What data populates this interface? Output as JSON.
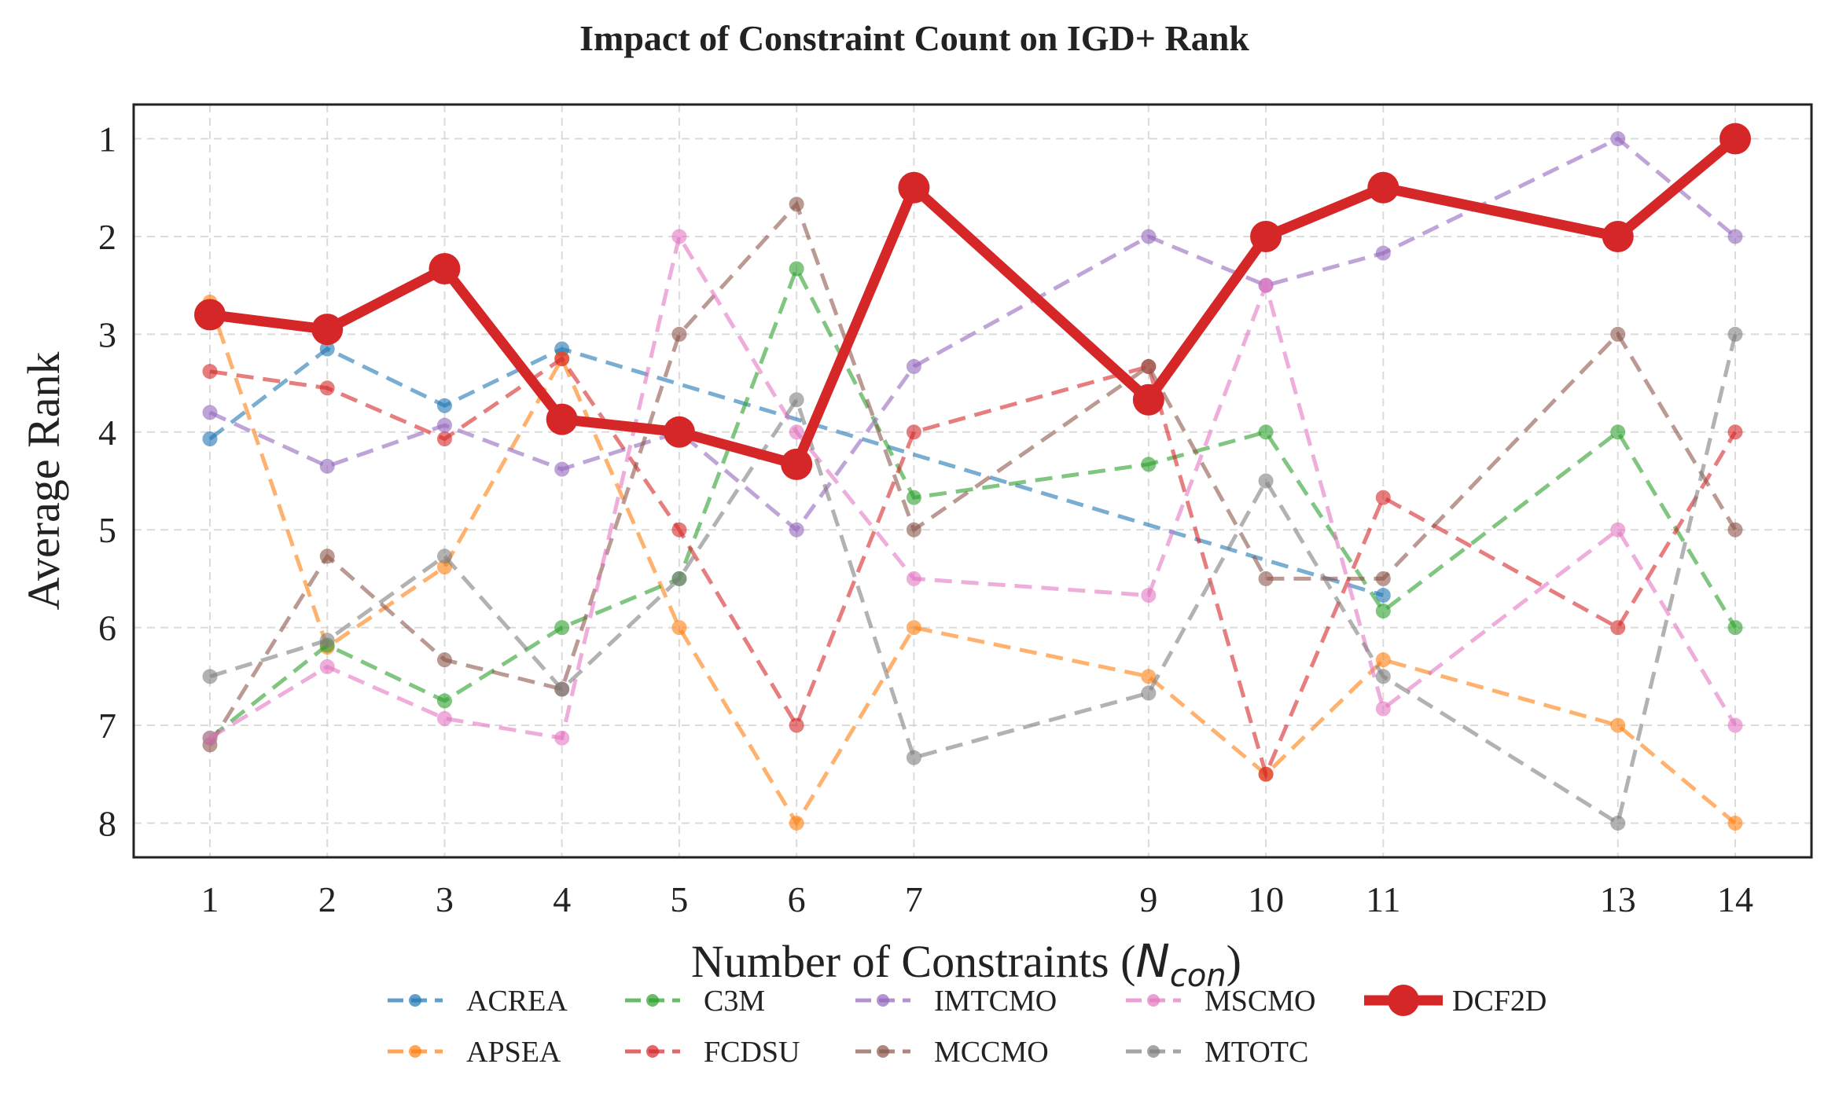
{
  "chart_data": {
    "type": "line",
    "title": "Impact of Constraint Count on IGD+ Rank",
    "xlabel": "Number of Constraints (",
    "xlabel_math": "N",
    "xlabel_sub": "con",
    "xlabel_close": ")",
    "ylabel": "Average Rank",
    "y_inverted": true,
    "ylim": [
      8.35,
      0.65
    ],
    "yticks": [
      1,
      2,
      3,
      4,
      5,
      6,
      7,
      8
    ],
    "xlim": [
      0.35,
      14.65
    ],
    "xticks": [
      1,
      2,
      3,
      4,
      5,
      6,
      7,
      9,
      10,
      11,
      13,
      14
    ],
    "grid": true,
    "legend_position": "bottom-center",
    "series": [
      {
        "name": "ACREA",
        "color": "#1f77b4",
        "style": "dashed",
        "points": [
          [
            1,
            4.07
          ],
          [
            2,
            3.15
          ],
          [
            3,
            3.73
          ],
          [
            4,
            3.15
          ],
          [
            11,
            5.67
          ]
        ]
      },
      {
        "name": "APSEA",
        "color": "#ff7f0e",
        "style": "dashed",
        "points": [
          [
            1,
            2.67
          ],
          [
            2,
            6.2
          ],
          [
            3,
            5.38
          ],
          [
            4,
            3.25
          ],
          [
            5,
            6.0
          ],
          [
            6,
            8.0
          ],
          [
            7,
            6.0
          ],
          [
            9,
            6.5
          ],
          [
            10,
            7.5
          ],
          [
            11,
            6.33
          ],
          [
            13,
            7.0
          ],
          [
            14,
            8.0
          ]
        ]
      },
      {
        "name": "C3M",
        "color": "#2ca02c",
        "style": "dashed",
        "points": [
          [
            1,
            7.13
          ],
          [
            2,
            6.18
          ],
          [
            3,
            6.75
          ],
          [
            4,
            6.0
          ],
          [
            5,
            5.5
          ],
          [
            6,
            2.33
          ],
          [
            7,
            4.67
          ],
          [
            9,
            4.33
          ],
          [
            10,
            4.0
          ],
          [
            11,
            5.83
          ],
          [
            13,
            4.0
          ],
          [
            14,
            6.0
          ]
        ]
      },
      {
        "name": "FCDSU",
        "color": "#d62728",
        "style": "dashed",
        "points": [
          [
            1,
            3.38
          ],
          [
            2,
            3.55
          ],
          [
            3,
            4.07
          ],
          [
            4,
            3.25
          ],
          [
            5,
            5.0
          ],
          [
            6,
            7.0
          ],
          [
            7,
            4.0
          ],
          [
            9,
            3.33
          ],
          [
            10,
            7.5
          ],
          [
            11,
            4.67
          ],
          [
            13,
            6.0
          ],
          [
            14,
            4.0
          ]
        ]
      },
      {
        "name": "IMTCMO",
        "color": "#9467bd",
        "style": "dashed",
        "points": [
          [
            1,
            3.8
          ],
          [
            2,
            4.35
          ],
          [
            3,
            3.93
          ],
          [
            4,
            4.38
          ],
          [
            5,
            4.0
          ],
          [
            6,
            5.0
          ],
          [
            7,
            3.33
          ],
          [
            9,
            2.0
          ],
          [
            10,
            2.5
          ],
          [
            11,
            2.17
          ],
          [
            13,
            1.0
          ],
          [
            14,
            2.0
          ]
        ]
      },
      {
        "name": "MCCMO",
        "color": "#8c564b",
        "style": "dashed",
        "points": [
          [
            1,
            7.2
          ],
          [
            2,
            5.27
          ],
          [
            3,
            6.33
          ],
          [
            4,
            6.63
          ],
          [
            5,
            3.0
          ],
          [
            6,
            1.67
          ],
          [
            7,
            5.0
          ],
          [
            9,
            3.33
          ],
          [
            10,
            5.5
          ],
          [
            11,
            5.5
          ],
          [
            13,
            3.0
          ],
          [
            14,
            5.0
          ]
        ]
      },
      {
        "name": "MSCMO",
        "color": "#e377c2",
        "style": "dashed",
        "points": [
          [
            1,
            7.13
          ],
          [
            2,
            6.4
          ],
          [
            3,
            6.93
          ],
          [
            4,
            7.13
          ],
          [
            5,
            2.0
          ],
          [
            6,
            4.0
          ],
          [
            7,
            5.5
          ],
          [
            9,
            5.67
          ],
          [
            10,
            2.5
          ],
          [
            11,
            6.83
          ],
          [
            13,
            5.0
          ],
          [
            14,
            7.0
          ]
        ]
      },
      {
        "name": "MTOTC",
        "color": "#7f7f7f",
        "style": "dashed",
        "points": [
          [
            1,
            6.5
          ],
          [
            2,
            6.13
          ],
          [
            3,
            5.27
          ],
          [
            4,
            6.63
          ],
          [
            5,
            5.5
          ],
          [
            6,
            3.67
          ],
          [
            7,
            7.33
          ],
          [
            9,
            6.67
          ],
          [
            10,
            4.5
          ],
          [
            11,
            6.5
          ],
          [
            13,
            8.0
          ],
          [
            14,
            3.0
          ]
        ]
      },
      {
        "name": "DCF2D",
        "color": "#d62728",
        "style": "solid",
        "emphasis": true,
        "points": [
          [
            1,
            2.8
          ],
          [
            2,
            2.95
          ],
          [
            3,
            2.33
          ],
          [
            4,
            3.87
          ],
          [
            5,
            4.0
          ],
          [
            6,
            4.33
          ],
          [
            7,
            1.5
          ],
          [
            9,
            3.67
          ],
          [
            10,
            2.0
          ],
          [
            11,
            1.5
          ],
          [
            13,
            2.0
          ],
          [
            14,
            1.0
          ]
        ]
      }
    ],
    "legend_order": [
      "ACREA",
      "C3M",
      "IMTCMO",
      "MSCMO",
      "DCF2D",
      "APSEA",
      "FCDSU",
      "MCCMO",
      "MTOTC"
    ]
  }
}
